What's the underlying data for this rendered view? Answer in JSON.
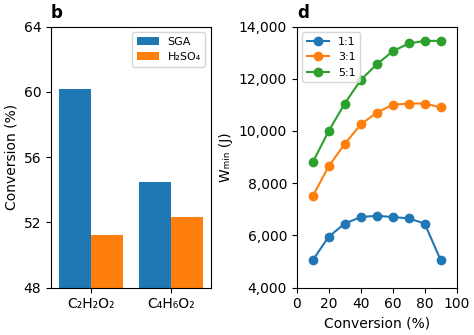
{
  "chart_data": [
    {
      "type": "bar",
      "title": "b",
      "categories": [
        "C₂H₂O₂",
        "C₄H₆O₂"
      ],
      "series": [
        {
          "name": "SGA",
          "values": [
            60.2,
            54.5
          ]
        },
        {
          "name": "H₂SO₄",
          "values": [
            51.2,
            52.3
          ]
        }
      ],
      "ylabel": "Conversion (%)",
      "ylim": [
        48,
        64
      ],
      "yticks": [
        48,
        52,
        56,
        60,
        64
      ],
      "legend": "upper right"
    },
    {
      "type": "line",
      "title": "d",
      "x": [
        10,
        20,
        30,
        40,
        50,
        60,
        70,
        80,
        90
      ],
      "series": [
        {
          "name": "1:1",
          "values": [
            5050,
            5950,
            6450,
            6700,
            6750,
            6700,
            6650,
            6450,
            5050
          ]
        },
        {
          "name": "3:1",
          "values": [
            7500,
            8650,
            9500,
            10250,
            10700,
            11000,
            11050,
            11050,
            10900
          ]
        },
        {
          "name": "5:1",
          "values": [
            8800,
            10000,
            11050,
            11950,
            12550,
            13050,
            13350,
            13450,
            13450
          ]
        }
      ],
      "xlabel": "Conversion (%)",
      "ylabel": "Wₘᵢₙ (J)",
      "xlim": [
        0,
        100
      ],
      "xticks": [
        0,
        20,
        40,
        60,
        80,
        100
      ],
      "ylim": [
        4000,
        14000
      ],
      "yticks": [
        {
          "value": 4000,
          "label": "4,000"
        },
        {
          "value": 6000,
          "label": "6,000"
        },
        {
          "value": 8000,
          "label": "8,000"
        },
        {
          "value": 10000,
          "label": "10,000"
        },
        {
          "value": 12000,
          "label": "12,000"
        },
        {
          "value": 14000,
          "label": "14,000"
        }
      ],
      "marker": "o",
      "legend": "upper left"
    }
  ]
}
